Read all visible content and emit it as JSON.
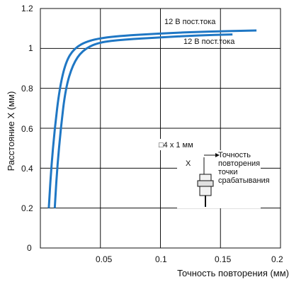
{
  "chart_data": {
    "type": "line",
    "title": "",
    "xlabel": "Точность повторения (мм)",
    "ylabel": "Расстояние X (мм)",
    "xlim": [
      0,
      0.2
    ],
    "ylim": [
      0,
      1.2
    ],
    "x_ticks": [
      "0.05",
      "0.1",
      "0.15",
      "0.2"
    ],
    "y_ticks": [
      "0",
      "0.2",
      "0.4",
      "0.6",
      "0.8",
      "1",
      "1.2"
    ],
    "grid": true,
    "series": [
      {
        "name": "12 В пост.тока",
        "color": "#1f77c4",
        "points": [
          [
            0.007,
            0.2
          ],
          [
            0.009,
            0.4
          ],
          [
            0.012,
            0.6
          ],
          [
            0.016,
            0.8
          ],
          [
            0.021,
            0.93
          ],
          [
            0.028,
            1.0
          ],
          [
            0.04,
            1.04
          ],
          [
            0.06,
            1.06
          ],
          [
            0.1,
            1.075
          ],
          [
            0.14,
            1.085
          ],
          [
            0.18,
            1.09
          ]
        ]
      },
      {
        "name": "12 В пост.тока",
        "color": "#1f77c4",
        "points": [
          [
            0.012,
            0.2
          ],
          [
            0.014,
            0.4
          ],
          [
            0.017,
            0.6
          ],
          [
            0.021,
            0.8
          ],
          [
            0.027,
            0.92
          ],
          [
            0.035,
            0.99
          ],
          [
            0.048,
            1.03
          ],
          [
            0.07,
            1.045
          ],
          [
            0.1,
            1.055
          ],
          [
            0.13,
            1.065
          ],
          [
            0.16,
            1.07
          ]
        ]
      }
    ],
    "annotations": {
      "series_label_1": "12 В пост.тока",
      "series_label_2": "12 В пост.тока",
      "size_label": "□4 х 1 мм",
      "x_symbol": "X",
      "diagram_caption": "Точность повторения точки срабатывания"
    }
  }
}
